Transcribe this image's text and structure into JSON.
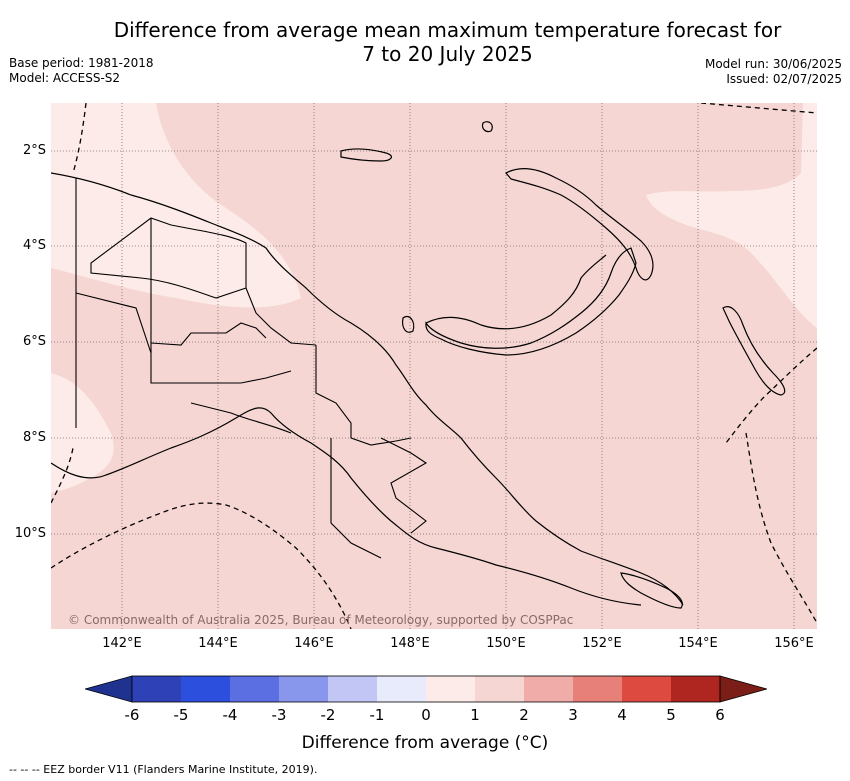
{
  "title": {
    "line1": "Difference from average mean maximum temperature forecast for",
    "line2": "7 to 20 July 2025"
  },
  "meta": {
    "base_period": "Base period: 1981-2018",
    "model": "Model: ACCESS-S2",
    "model_run": "Model run: 30/06/2025",
    "issued": "Issued: 02/07/2025"
  },
  "map": {
    "lat_labels": [
      "2°S",
      "4°S",
      "6°S",
      "8°S",
      "10°S"
    ],
    "lon_labels": [
      "142°E",
      "144°E",
      "146°E",
      "148°E",
      "150°E",
      "152°E",
      "154°E",
      "156°E"
    ],
    "copyright": "© Commonwealth of Australia 2025, Bureau of Meteorology, supported by COSPPac",
    "colors": {
      "anomaly_0_to_1": "#fcebe8",
      "anomaly_1_to_2": "#f5d6d3"
    }
  },
  "colorbar": {
    "tick_labels": [
      "-6",
      "-5",
      "-4",
      "-3",
      "-2",
      "-1",
      "0",
      "1",
      "2",
      "3",
      "4",
      "5",
      "6"
    ],
    "colors": [
      "#1f3290",
      "#2e41b6",
      "#2d4fdd",
      "#5b6fe3",
      "#8896eb",
      "#c1c6f4",
      "#e7ebfb",
      "#fcebe8",
      "#f5d6d3",
      "#f0aca8",
      "#e8807a",
      "#dc4a40",
      "#ae261f",
      "#7a1e17"
    ],
    "title": "Difference from average (°C)"
  },
  "footer": "--  --  -- EEZ border V11 (Flanders Marine Institute, 2019)."
}
